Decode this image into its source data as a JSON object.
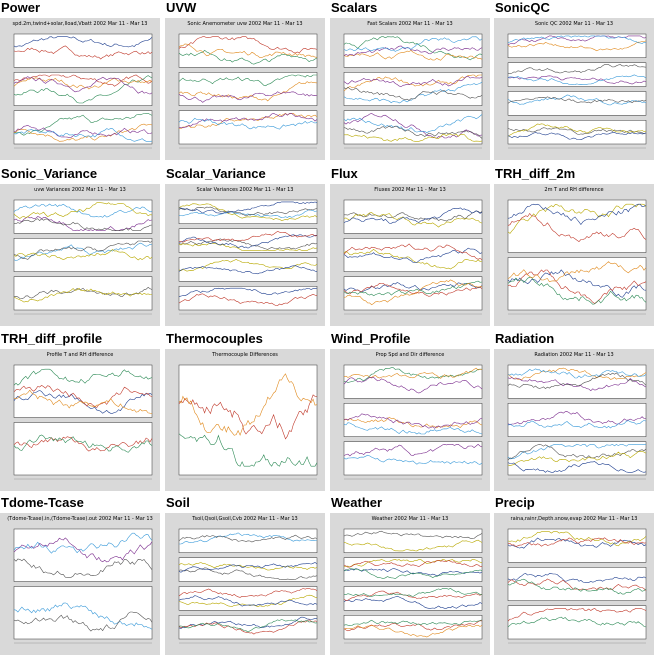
{
  "panels": [
    {
      "label": "Power",
      "plot_title": "spd.2m,twind+solar,Iload,Vbatt 2002 Mar 11 - Mar 13"
    },
    {
      "label": "UVW",
      "plot_title": "Sonic Anemometer uvw 2002 Mar 11 - Mar 13"
    },
    {
      "label": "Scalars",
      "plot_title": "Fast Scalars 2002 Mar 11 - Mar 13"
    },
    {
      "label": "SonicQC",
      "plot_title": "Sonic QC 2002 Mar 11 - Mar 13"
    },
    {
      "label": "Sonic_Variance",
      "plot_title": "uvw Variances 2002 Mar 11 - Mar 13"
    },
    {
      "label": "Scalar_Variance",
      "plot_title": "Scalar Variances 2002 Mar 11 - Mar 13"
    },
    {
      "label": "Flux",
      "plot_title": "Fluxes 2002 Mar 11 - Mar 13"
    },
    {
      "label": "TRH_diff_2m",
      "plot_title": "2m T and RH difference"
    },
    {
      "label": "TRH_diff_profile",
      "plot_title": "Profile T and RH difference"
    },
    {
      "label": "Thermocouples",
      "plot_title": "Thermocouple Differences"
    },
    {
      "label": "Wind_Profile",
      "plot_title": "Prop Spd and Dir difference"
    },
    {
      "label": "Radiation",
      "plot_title": "Radiation 2002 Mar 11 - Mar 13"
    },
    {
      "label": "Tdome-Tcase",
      "plot_title": "(Tdome-Tcase).in,(Tdome-Tcase).out 2002 Mar 11 - Mar 13"
    },
    {
      "label": "Soil",
      "plot_title": "Tsoil,Qsoil,Gsoil,Cvb 2002 Mar 11 - Mar 13"
    },
    {
      "label": "Weather",
      "plot_title": "Weather 2002 Mar 11 - Mar 13"
    },
    {
      "label": "Precip",
      "plot_title": "raina,rainr,Depth.snow,evap 2002 Mar 11 - Mar 13"
    }
  ]
}
